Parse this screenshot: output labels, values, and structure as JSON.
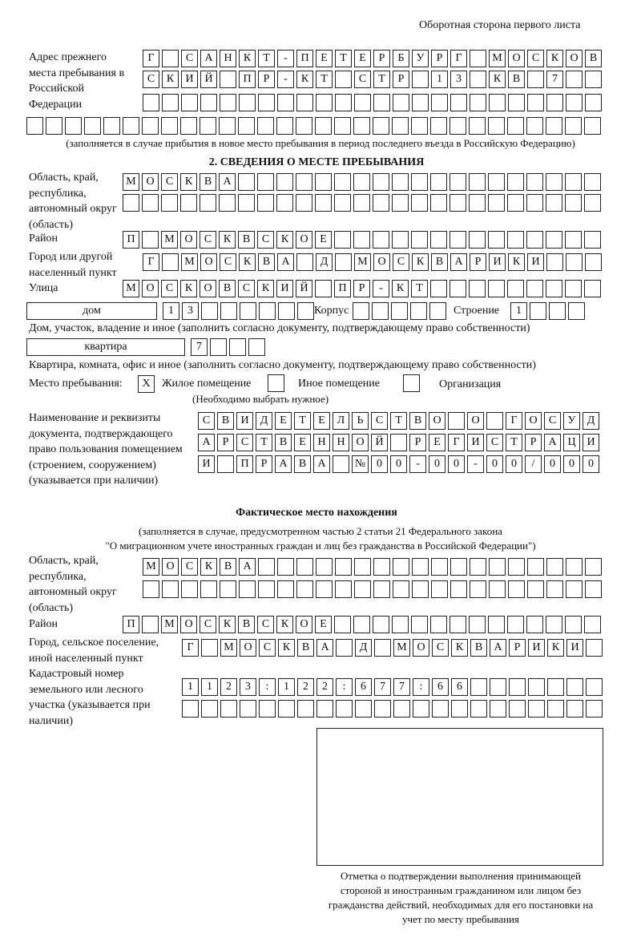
{
  "header": "Оборотная сторона первого листа",
  "prev_address": {
    "label": "Адрес прежнего места пребывания в Российской Федерации",
    "rows": [
      [
        "Г",
        "",
        "С",
        "А",
        "Н",
        "К",
        "Т",
        "-",
        "П",
        "Е",
        "Т",
        "Е",
        "Р",
        "Б",
        "У",
        "Р",
        "Г",
        "",
        "М",
        "О",
        "С",
        "К",
        "О",
        "В"
      ],
      [
        "С",
        "К",
        "И",
        "Й",
        "",
        "П",
        "Р",
        "-",
        "К",
        "Т",
        "",
        "С",
        "Т",
        "Р",
        "",
        "1",
        "3",
        "",
        "К",
        "В",
        "",
        "7",
        "",
        ""
      ],
      [
        "",
        "",
        "",
        "",
        "",
        "",
        "",
        "",
        "",
        "",
        "",
        "",
        "",
        "",
        "",
        "",
        "",
        "",
        "",
        "",
        "",
        "",
        "",
        ""
      ],
      [
        "",
        "",
        "",
        "",
        "",
        "",
        "",
        "",
        "",
        "",
        "",
        "",
        "",
        "",
        "",
        "",
        "",
        "",
        "",
        "",
        "",
        "",
        "",
        "",
        "",
        "",
        "",
        "",
        "",
        ""
      ]
    ],
    "note": "(заполняется в случае прибытия в новое место пребывания в период последнего въезда в Российскую Федерацию)"
  },
  "section2": {
    "title": "2. СВЕДЕНИЯ О МЕСТЕ ПРЕБЫВАНИЯ",
    "region_label": "Область, край, республика, автономный округ (область)",
    "region_rows": [
      [
        "М",
        "О",
        "С",
        "К",
        "В",
        "А",
        "",
        "",
        "",
        "",
        "",
        "",
        "",
        "",
        "",
        "",
        "",
        "",
        "",
        "",
        "",
        "",
        "",
        "",
        ""
      ],
      [
        "",
        "",
        "",
        "",
        "",
        "",
        "",
        "",
        "",
        "",
        "",
        "",
        "",
        "",
        "",
        "",
        "",
        "",
        "",
        "",
        "",
        "",
        "",
        "",
        ""
      ]
    ],
    "district_label": "Район",
    "district": [
      "П",
      "",
      "М",
      "О",
      "С",
      "К",
      "В",
      "С",
      "К",
      "О",
      "Е",
      "",
      "",
      "",
      "",
      "",
      "",
      "",
      "",
      "",
      "",
      "",
      "",
      "",
      ""
    ],
    "city_label": "Город или другой населенный пункт",
    "city": [
      "Г",
      "",
      "М",
      "О",
      "С",
      "К",
      "В",
      "А",
      "",
      "Д",
      "",
      "М",
      "О",
      "С",
      "К",
      "В",
      "А",
      "Р",
      "И",
      "К",
      "И",
      "",
      "",
      ""
    ],
    "street_label": "Улица",
    "street": [
      "М",
      "О",
      "С",
      "К",
      "О",
      "В",
      "С",
      "К",
      "И",
      "Й",
      "",
      "П",
      "Р",
      "-",
      "К",
      "Т",
      "",
      "",
      "",
      "",
      "",
      "",
      "",
      "",
      ""
    ],
    "house_type": "дом",
    "house": [
      "1",
      "3",
      "",
      "",
      "",
      "",
      "",
      ""
    ],
    "korpus_label": "Корпус",
    "korpus": [
      "",
      "",
      "",
      "",
      ""
    ],
    "building_label": "Строение",
    "building": [
      "1",
      "",
      "",
      ""
    ],
    "house_note": "Дом, участок, владение и иное (заполнить согласно документу, подтверждающему право собственности)",
    "flat_type": "квартира",
    "flat": [
      "7",
      "",
      "",
      ""
    ],
    "flat_note": "Квартира, комната, офис и иное (заполнить согласно документу, подтверждающему право собственности)",
    "stay_label": "Место пребывания:",
    "stay_options": [
      {
        "mark": "X",
        "label": "Жилое помещение",
        "checked": true
      },
      {
        "mark": "",
        "label": "Иное помещение",
        "checked": false
      },
      {
        "mark": "",
        "label": "Организация",
        "checked": false
      }
    ],
    "stay_note": "(Необходимо выбрать нужное)",
    "doc_label": "Наименование и реквизиты документа, подтверждающего право пользования помещением (строением, сооружением) (указывается при наличии)",
    "doc_rows": [
      [
        "С",
        "В",
        "И",
        "Д",
        "Е",
        "Т",
        "Е",
        "Л",
        "Ь",
        "С",
        "Т",
        "В",
        "О",
        "",
        "О",
        "",
        "Г",
        "О",
        "С",
        "У",
        "Д"
      ],
      [
        "А",
        "Р",
        "С",
        "Т",
        "В",
        "Е",
        "Н",
        "Н",
        "О",
        "Й",
        "",
        "Р",
        "Е",
        "Г",
        "И",
        "С",
        "Т",
        "Р",
        "А",
        "Ц",
        "И"
      ],
      [
        "И",
        "",
        "П",
        "Р",
        "А",
        "В",
        "А",
        "",
        "№",
        "0",
        "0",
        "-",
        "0",
        "0",
        "-",
        "0",
        "0",
        "/",
        "0",
        "0",
        "0"
      ]
    ]
  },
  "actual": {
    "title": "Фактическое место нахождения",
    "note1": "(заполняется в случае, предусмотренном частью 2 статьи 21 Федерального закона",
    "note2": "\"О миграционном учете иностранных граждан и лиц без гражданства в Российской Федерации\")",
    "region_label": "Область, край, республика, автономный округ (область)",
    "region_rows": [
      [
        "М",
        "О",
        "С",
        "К",
        "В",
        "А",
        "",
        "",
        "",
        "",
        "",
        "",
        "",
        "",
        "",
        "",
        "",
        "",
        "",
        "",
        "",
        "",
        "",
        ""
      ],
      [
        "",
        "",
        "",
        "",
        "",
        "",
        "",
        "",
        "",
        "",
        "",
        "",
        "",
        "",
        "",
        "",
        "",
        "",
        "",
        "",
        "",
        "",
        "",
        ""
      ]
    ],
    "district_label": "Район",
    "district": [
      "П",
      "",
      "М",
      "О",
      "С",
      "К",
      "В",
      "С",
      "К",
      "О",
      "Е",
      "",
      "",
      "",
      "",
      "",
      "",
      "",
      "",
      "",
      "",
      "",
      "",
      "",
      ""
    ],
    "city_label": "Город, сельское поселение, иной населенный пункт",
    "city": [
      "Г",
      "",
      "М",
      "О",
      "С",
      "К",
      "В",
      "А",
      "",
      "Д",
      "",
      "М",
      "О",
      "С",
      "К",
      "В",
      "А",
      "Р",
      "И",
      "К",
      "И",
      ""
    ],
    "cadastral_label": "Кадастровый номер земельного или лесного участка (указывается при наличии)",
    "cadastral_rows": [
      [
        "1",
        "1",
        "2",
        "3",
        ":",
        "1",
        "2",
        "2",
        ":",
        "6",
        "7",
        "7",
        ":",
        "6",
        "6",
        "",
        "",
        "",
        "",
        "",
        "",
        ""
      ],
      [
        "",
        "",
        "",
        "",
        "",
        "",
        "",
        "",
        "",
        "",
        "",
        "",
        "",
        "",
        "",
        "",
        "",
        "",
        "",
        "",
        "",
        ""
      ]
    ]
  },
  "stamp_caption": "Отметка о подтверждении выполнения принимающей стороной и иностранным гражданином или лицом без гражданства действий, необходимых для его постановки на учет по месту пребывания"
}
